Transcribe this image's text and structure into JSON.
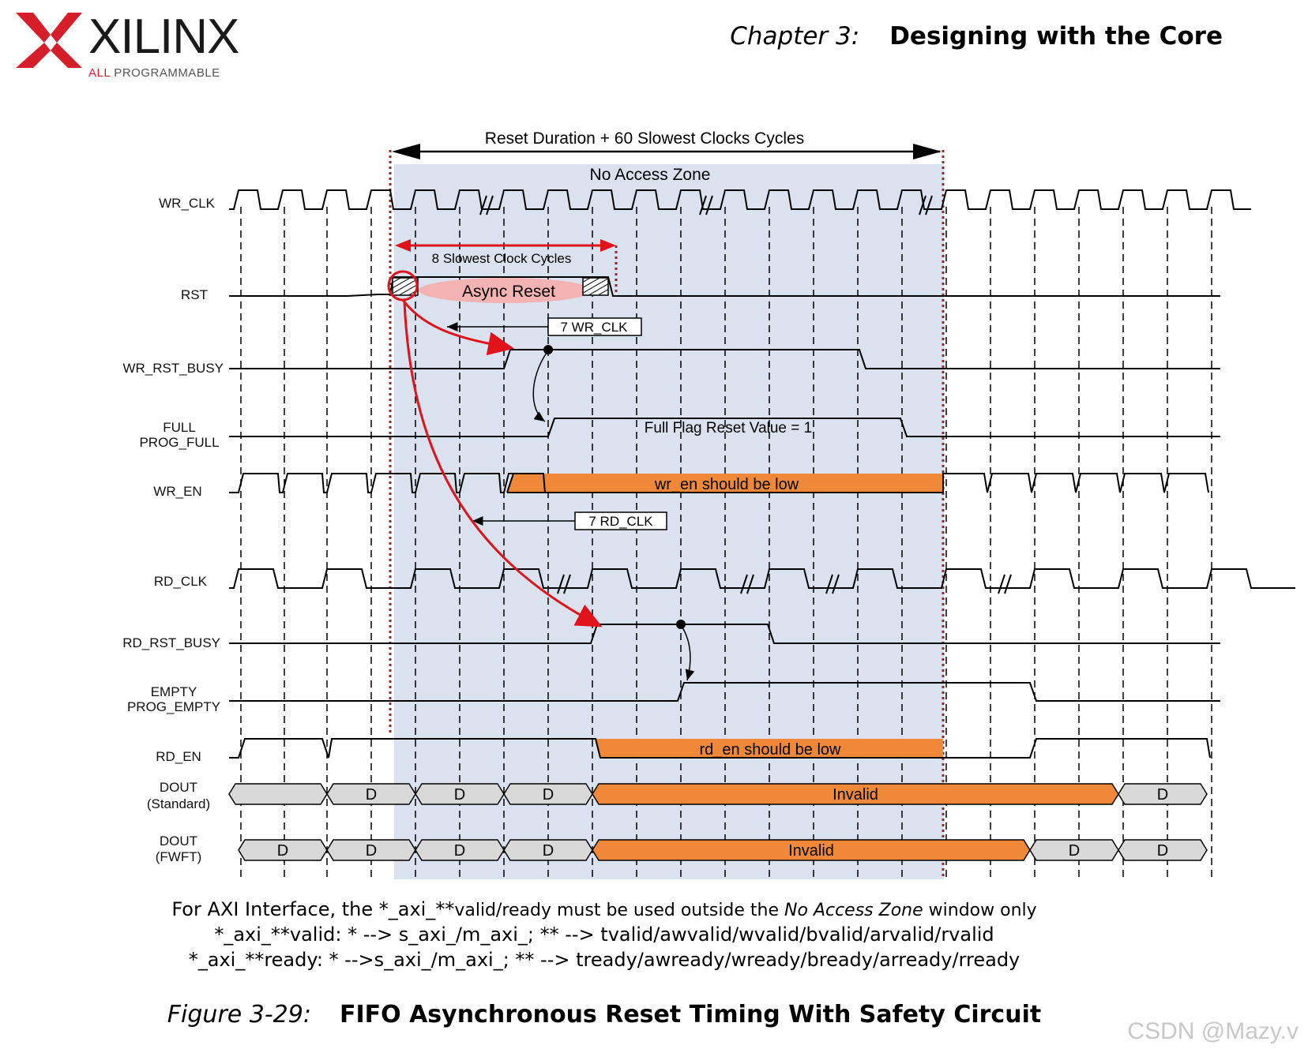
{
  "header": {
    "logo_text": "XILINX",
    "logo_tagline_prefix": "ALL",
    "logo_tagline_rest": " PROGRAMMABLE",
    "chapter_label": "Chapter 3:",
    "chapter_title": "Designing with the Core"
  },
  "diagram": {
    "span_label": "Reset Duration + 60 Slowest Clocks Cycles",
    "zone_label": "No Access Zone",
    "cycles_label": "8 Slowest Clock Cycles",
    "async_label": "Async Reset",
    "wr_clk_delay": "7 WR_CLK",
    "rd_clk_delay": "7 RD_CLK",
    "full_flag_note": "Full Flag Reset Value = 1",
    "wr_en_note": "wr_en should be low",
    "rd_en_note": "rd_en should be low",
    "invalid_label": "Invalid",
    "data_label": "D",
    "signals": {
      "wr_clk": "WR_CLK",
      "rst": "RST",
      "wr_rst_busy": "WR_RST_BUSY",
      "full": "FULL",
      "prog_full": "PROG_FULL",
      "wr_en": "WR_EN",
      "rd_clk": "RD_CLK",
      "rd_rst_busy": "RD_RST_BUSY",
      "empty": "EMPTY",
      "prog_empty": "PROG_EMPTY",
      "rd_en": "RD_EN",
      "dout_std": "DOUT",
      "dout_std_sub": "(Standard)",
      "dout_fwft": "DOUT",
      "dout_fwft_sub": "(FWFT)"
    },
    "colors": {
      "zone": "#d9e2ee",
      "orange": "#f0883a",
      "gray_bus": "#d8d8d8",
      "red": "#e0121a",
      "dotted_boundary": "#8b2a2a"
    }
  },
  "notes": {
    "line1_big": "For AXI Interface, the *_axi_**",
    "line1_small": "valid/ready must be used outside the ",
    "line1_italic": "No Access Zone",
    "line1_end": " window only",
    "line2": "*_axi_**valid: * --> s_axi_/m_axi_; ** --> tvalid/awvalid/wvalid/bvalid/arvalid/rvalid",
    "line3": "*_axi_**ready: * -->s_axi_/m_axi_; ** --> tready/awready/wready/bready/arready/rready"
  },
  "caption": {
    "figure_label": "Figure 3-29:",
    "figure_title": "FIFO Asynchronous Reset Timing With Safety Circuit"
  },
  "watermark": "CSDN @Mazy.v"
}
